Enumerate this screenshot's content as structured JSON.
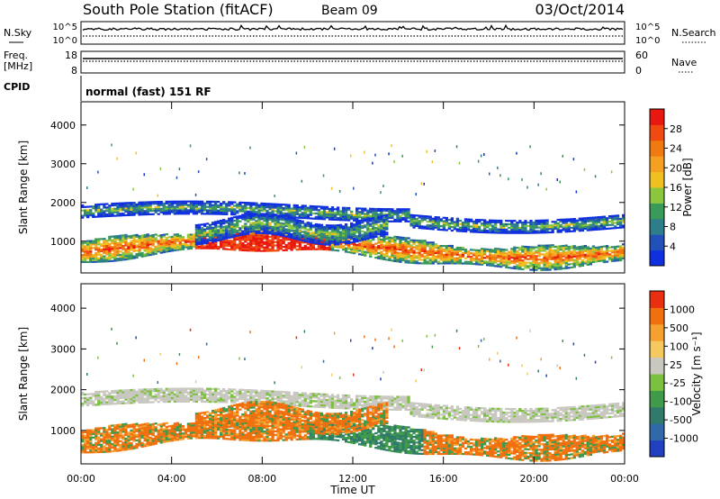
{
  "header": {
    "station": "South Pole Station (fitACF)",
    "beam": "Beam 09",
    "date": "03/Oct/2014"
  },
  "top_panels": {
    "nsky_label": "N.Sky",
    "nsky_ticks": [
      "10^5",
      "10^0"
    ],
    "nsearch_label": "N.Search",
    "nsearch_ticks": [
      "10^5",
      "10^0"
    ],
    "freq_label": "Freq.",
    "freq_unit": "[MHz]",
    "freq_ticks": [
      "18",
      "8"
    ],
    "nave_label": "Nave",
    "nave_ticks": [
      "60",
      "0"
    ],
    "cpid_label": "CPID",
    "cpid_text": "normal (fast) 151 RF"
  },
  "chart_data": [
    {
      "type": "heatmap",
      "name": "power",
      "ylabel": "Slant Range [km]",
      "yticks": [
        "1000",
        "2000",
        "3000",
        "4000"
      ],
      "ylim": [
        180,
        4600
      ],
      "xlabel": "Time UT",
      "xticks": [
        "00:00",
        "04:00",
        "08:00",
        "12:00",
        "16:00",
        "20:00",
        "00:00"
      ],
      "colorbar": {
        "label": "Power [dB]",
        "ticks": [
          "4",
          "8",
          "12",
          "16",
          "20",
          "24",
          "28"
        ],
        "colors": [
          "#1030e0",
          "#2050b8",
          "#2d7d8a",
          "#3a9a5a",
          "#8cc63f",
          "#f0c020",
          "#f5a020",
          "#f07a10",
          "#f04a10",
          "#e81810"
        ]
      }
    },
    {
      "type": "heatmap",
      "name": "velocity",
      "ylabel": "Slant Range [km]",
      "yticks": [
        "1000",
        "2000",
        "3000",
        "4000"
      ],
      "ylim": [
        180,
        4600
      ],
      "xlabel": "Time UT",
      "xticks": [
        "00:00",
        "04:00",
        "08:00",
        "12:00",
        "16:00",
        "20:00",
        "00:00"
      ],
      "colorbar": {
        "label": "Velocity [m s⁻¹]",
        "ticks": [
          "1000",
          "500",
          "100",
          "25",
          "-25",
          "-100",
          "-500",
          "-1000"
        ],
        "colors": [
          "#2040c0",
          "#3068a8",
          "#2f7a6a",
          "#3f9a4a",
          "#7cc040",
          "#c8c8c0",
          "#f5c860",
          "#f5a030",
          "#f07010",
          "#e83010"
        ]
      }
    }
  ]
}
